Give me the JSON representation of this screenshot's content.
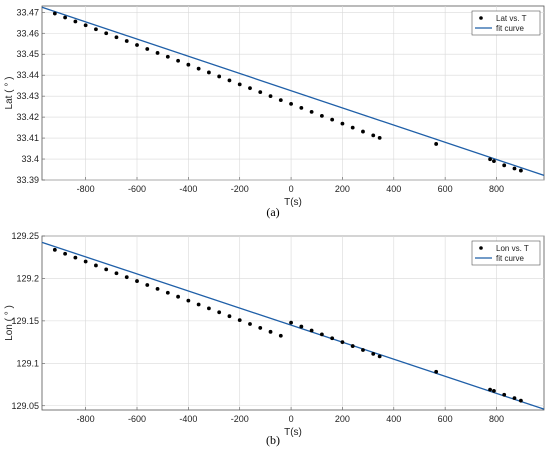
{
  "colors": {
    "fit_line": "#1f5fa8",
    "points": "#000000",
    "grid": "#d9d9d9",
    "axis": "#555555"
  },
  "chart_data": [
    {
      "type": "scatter",
      "caption": "(a)",
      "xlabel": "T(s)",
      "ylabel": "Lat ( ° )",
      "xlim": [
        -970,
        985
      ],
      "ylim": [
        33.39,
        33.473
      ],
      "xticks": [
        -800,
        -600,
        -400,
        -200,
        0,
        200,
        400,
        600,
        800
      ],
      "yticks": [
        33.39,
        33.4,
        33.41,
        33.42,
        33.43,
        33.44,
        33.45,
        33.46,
        33.47
      ],
      "ytick_labels": [
        "33.39",
        "33.4",
        "33.41",
        "33.42",
        "33.43",
        "33.44",
        "33.45",
        "33.46",
        "33.47"
      ],
      "grid": true,
      "legend_position": "top-right",
      "series": [
        {
          "name": "Lat vs. T",
          "kind": "points",
          "x": [
            -920,
            -880,
            -840,
            -800,
            -760,
            -720,
            -680,
            -640,
            -600,
            -560,
            -520,
            -480,
            -440,
            -400,
            -360,
            -320,
            -280,
            -240,
            -200,
            -160,
            -120,
            -80,
            -40,
            0,
            40,
            80,
            120,
            160,
            200,
            240,
            280,
            320,
            345,
            565,
            775,
            790,
            830,
            870,
            895
          ],
          "y": [
            33.4694,
            33.4675,
            33.4656,
            33.4638,
            33.4619,
            33.46,
            33.4581,
            33.4563,
            33.4544,
            33.4525,
            33.4506,
            33.4488,
            33.4469,
            33.445,
            33.4431,
            33.4413,
            33.4394,
            33.4375,
            33.4356,
            33.4338,
            33.4319,
            33.43,
            33.4281,
            33.4263,
            33.4244,
            33.4225,
            33.4206,
            33.4188,
            33.4169,
            33.415,
            33.4131,
            33.4113,
            33.4101,
            33.4072,
            33.3999,
            33.399,
            33.397,
            33.3955,
            33.3945
          ]
        },
        {
          "name": "fit curve",
          "kind": "line",
          "x": [
            -970,
            985
          ],
          "y": [
            33.4724,
            33.3922
          ]
        }
      ]
    },
    {
      "type": "scatter",
      "caption": "(b)",
      "xlabel": "T(s)",
      "ylabel": "Lon ( ° )",
      "xlim": [
        -970,
        985
      ],
      "ylim": [
        129.045,
        129.25
      ],
      "xticks": [
        -800,
        -600,
        -400,
        -200,
        0,
        200,
        400,
        600,
        800
      ],
      "yticks": [
        129.05,
        129.1,
        129.15,
        129.2,
        129.25
      ],
      "ytick_labels": [
        "129.05",
        "129.1",
        "129.15",
        "129.2",
        "129.25"
      ],
      "grid": true,
      "legend_position": "top-right",
      "series": [
        {
          "name": "Lon vs. T",
          "kind": "points",
          "x": [
            -920,
            -880,
            -840,
            -800,
            -760,
            -720,
            -680,
            -640,
            -600,
            -560,
            -520,
            -480,
            -440,
            -400,
            -360,
            -320,
            -280,
            -240,
            -200,
            -160,
            -120,
            -80,
            -40,
            0,
            40,
            80,
            120,
            160,
            200,
            240,
            280,
            320,
            345,
            565,
            775,
            790,
            830,
            870,
            895
          ],
          "y": [
            129.2337,
            129.2291,
            129.2245,
            129.2199,
            129.2153,
            129.2107,
            129.2061,
            129.2015,
            129.1969,
            129.1923,
            129.1877,
            129.1831,
            129.1785,
            129.1739,
            129.1693,
            129.1647,
            129.1601,
            129.1555,
            129.1509,
            129.1463,
            129.1417,
            129.1371,
            129.1325,
            129.1479,
            129.1433,
            129.1387,
            129.1341,
            129.1295,
            129.1249,
            129.1203,
            129.1157,
            129.1111,
            129.1082,
            129.09,
            129.069,
            129.0675,
            129.063,
            129.059,
            129.056
          ]
        },
        {
          "name": "fit curve",
          "kind": "line",
          "x": [
            -970,
            985
          ],
          "y": [
            129.2425,
            129.046
          ]
        }
      ]
    }
  ]
}
